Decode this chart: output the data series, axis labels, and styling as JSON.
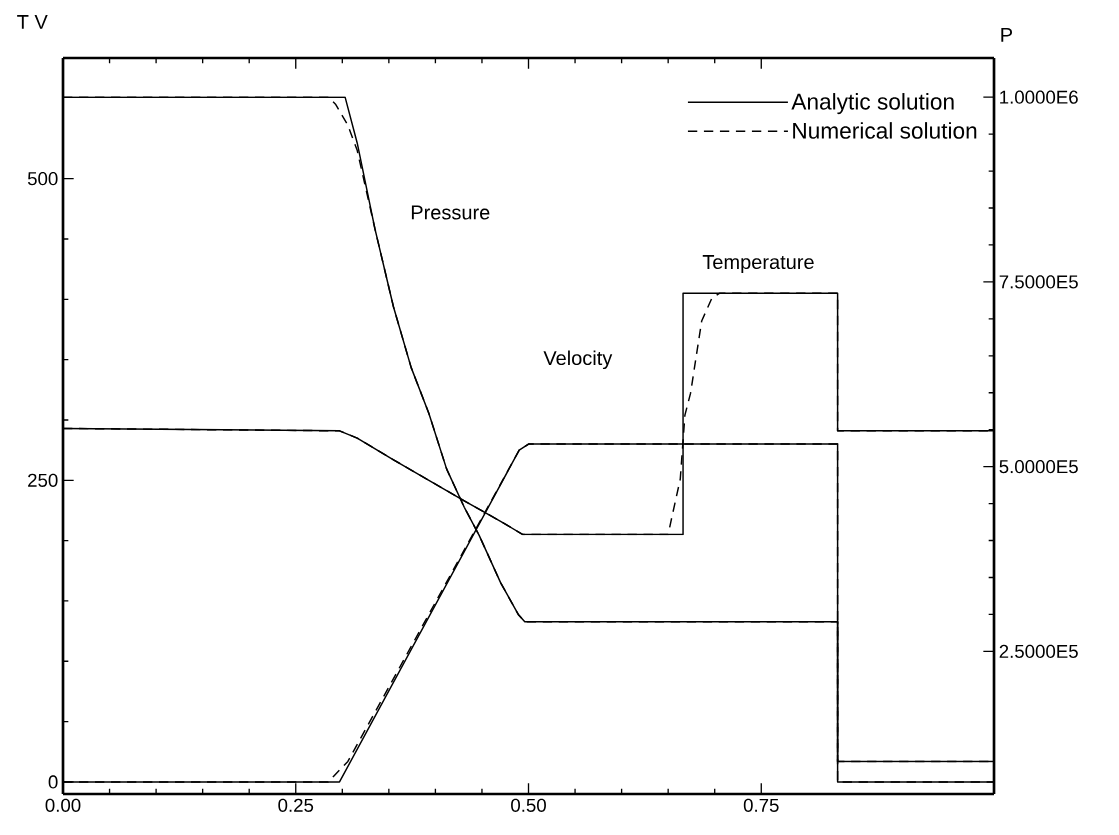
{
  "chart_data": {
    "type": "line",
    "ylabel": "T V",
    "y2label": "P",
    "xlim": [
      0,
      1.0
    ],
    "xticks": [
      {
        "value": 0,
        "label": "0.00"
      },
      {
        "value": 0.25,
        "label": "0.25"
      },
      {
        "value": 0.5,
        "label": "0.50"
      },
      {
        "value": 0.75,
        "label": "0.75"
      }
    ],
    "ylim": [
      -10,
      600
    ],
    "yticks": [
      0,
      250,
      500
    ],
    "y2lim": [
      57000,
      1053000
    ],
    "y2ticks": [
      {
        "value": 250000,
        "label": "2.5000E5"
      },
      {
        "value": 500000,
        "label": "5.0000E5"
      },
      {
        "value": 750000,
        "label": "7.5000E5"
      },
      {
        "value": 1000000,
        "label": "1.0000E6"
      }
    ],
    "legend": "top right",
    "series": [
      {
        "name": "Analytic solution",
        "line_style": "solid",
        "color": "#000000",
        "x": [
          0,
          0.297,
          0.316,
          0.355,
          0.393,
          0.431,
          0.47,
          0.494,
          0.666,
          0.666,
          0.832,
          0.832,
          1.0
        ],
        "values": [
          293,
          291,
          285,
          267,
          250,
          233,
          216,
          205,
          205,
          405,
          405,
          291,
          291
        ]
      },
      {
        "name": "Numerical solution",
        "line_style": "dashed",
        "color": "#000000",
        "x": [
          0,
          0.297,
          0.316,
          0.355,
          0.393,
          0.431,
          0.47,
          0.494,
          0.65,
          0.653,
          0.663,
          0.668,
          0.674,
          0.686,
          0.697,
          0.705,
          0.832,
          0.832,
          1.0
        ],
        "values": [
          293,
          291,
          285,
          267,
          250,
          233,
          216,
          205,
          205,
          216,
          251,
          304,
          322,
          382,
          401,
          405,
          405,
          291,
          291
        ]
      },
      {
        "line_style": "solid",
        "color": "#000000",
        "x": [
          0,
          0.297,
          0.49,
          0.5,
          0.832,
          0.832,
          1.0
        ],
        "values": [
          0,
          0,
          275,
          280,
          280,
          0,
          0
        ]
      },
      {
        "line_style": "dashed",
        "color": "#000000",
        "x": [
          0,
          0.285,
          0.291,
          0.306,
          0.49,
          0.5,
          0.832,
          0.832,
          1.0
        ],
        "values": [
          0,
          0,
          5,
          17,
          275,
          280,
          280,
          0,
          0
        ]
      },
      {
        "line_style": "solid",
        "color": "#000000",
        "axis": "y2",
        "x": [
          0,
          0.303,
          0.316,
          0.335,
          0.355,
          0.374,
          0.393,
          0.412,
          0.431,
          0.447,
          0.47,
          0.489,
          0.496,
          0.832,
          0.832,
          1.0
        ],
        "values": [
          1000000,
          1000000,
          938000,
          822000,
          716000,
          634000,
          572000,
          497000,
          445000,
          407000,
          343000,
          300000,
          290000,
          290000,
          101000,
          101000
        ]
      },
      {
        "line_style": "dashed",
        "color": "#000000",
        "axis": "y2",
        "x": [
          0,
          0.285,
          0.293,
          0.306,
          0.316,
          0.335,
          0.355,
          0.374,
          0.393,
          0.412,
          0.431,
          0.447,
          0.47,
          0.489,
          0.496,
          0.832,
          0.832,
          1.0
        ],
        "values": [
          1000000,
          1000000,
          990000,
          962000,
          928000,
          822000,
          716000,
          634000,
          572000,
          497000,
          445000,
          407000,
          343000,
          300000,
          290000,
          290000,
          101000,
          101000
        ]
      }
    ],
    "annotations": [
      "Pressure",
      "Velocity",
      "Temperature"
    ]
  }
}
